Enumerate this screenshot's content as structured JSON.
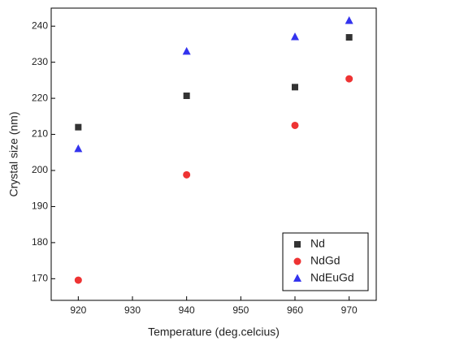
{
  "chart_data": {
    "type": "scatter",
    "x_label": "Temperature (deg.celcius)",
    "y_label": "Crystal size (nm)",
    "xlim": [
      915,
      975
    ],
    "xticks": [
      920,
      930,
      940,
      950,
      960,
      970
    ],
    "ylim": [
      164,
      245
    ],
    "yticks": [
      170,
      180,
      190,
      200,
      210,
      220,
      230,
      240
    ],
    "legend": "lower-right",
    "series": [
      {
        "name": "Nd",
        "color": "#333333",
        "marker": "square",
        "x": [
          920,
          940,
          960,
          970
        ],
        "values": [
          212,
          220.7,
          223.1,
          236.9
        ]
      },
      {
        "name": "NdGd",
        "color": "#ee3333",
        "marker": "circle",
        "x": [
          920,
          940,
          960,
          970
        ],
        "values": [
          169.6,
          198.8,
          212.5,
          225.4
        ]
      },
      {
        "name": "NdEuGd",
        "color": "#3333ee",
        "marker": "triangle",
        "x": [
          920,
          940,
          960,
          970
        ],
        "values": [
          206,
          233,
          237,
          241.5
        ]
      }
    ]
  }
}
